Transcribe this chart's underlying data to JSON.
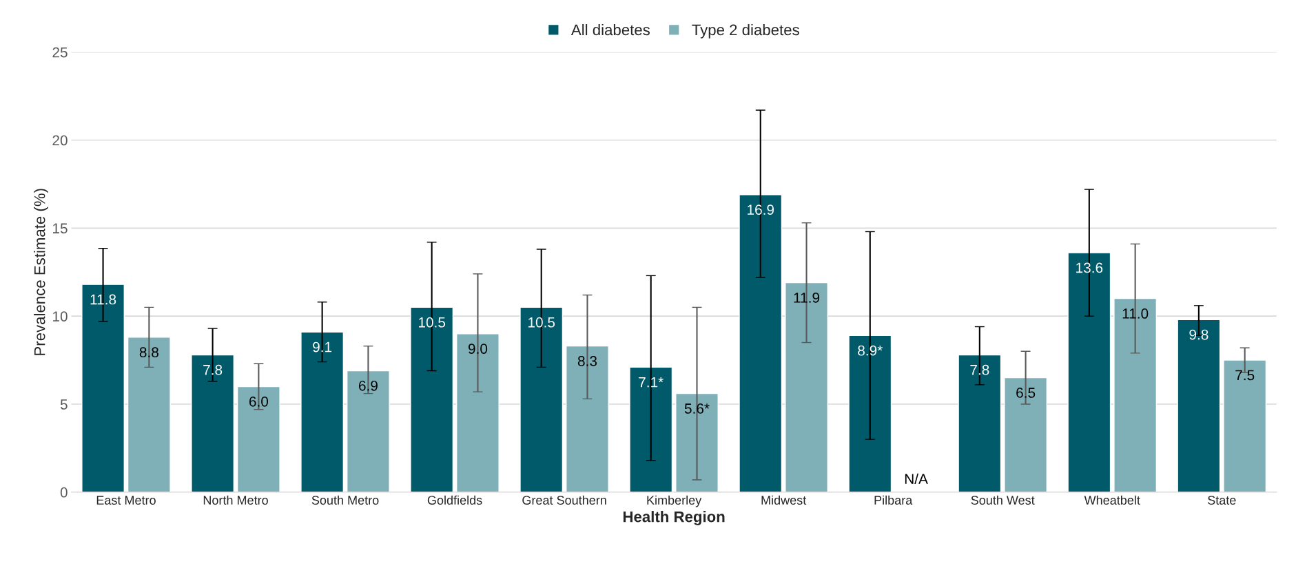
{
  "chart_data": {
    "type": "bar",
    "xlabel": "Health Region",
    "ylabel": "Prevalence Estimate (%)",
    "categories": [
      "East Metro",
      "North Metro",
      "South Metro",
      "Goldfields",
      "Great Southern",
      "Kimberley",
      "Midwest",
      "Pilbara",
      "South West",
      "Wheatbelt",
      "State"
    ],
    "series": [
      {
        "name": "All diabetes",
        "color": "#005a6a",
        "values": [
          11.8,
          7.8,
          9.1,
          10.5,
          10.5,
          7.1,
          16.9,
          8.9,
          7.8,
          13.6,
          9.8
        ],
        "value_labels": [
          "11.8",
          "7.8",
          "9.1",
          "10.5",
          "10.5",
          "7.1*",
          "16.9",
          "8.9*",
          "7.8",
          "13.6",
          "9.8"
        ],
        "errors": [
          [
            9.7,
            13.85
          ],
          [
            6.3,
            9.3
          ],
          [
            7.4,
            10.8
          ],
          [
            6.9,
            14.2
          ],
          [
            7.1,
            13.8
          ],
          [
            1.8,
            12.3
          ],
          [
            12.2,
            21.7
          ],
          [
            3.0,
            14.8
          ],
          [
            6.1,
            9.4
          ],
          [
            10.0,
            17.2
          ],
          [
            8.9,
            10.6
          ]
        ]
      },
      {
        "name": "Type 2 diabetes",
        "color": "#7fafb7",
        "values": [
          8.8,
          6.0,
          6.9,
          9.0,
          8.3,
          5.6,
          11.9,
          null,
          6.5,
          11.0,
          7.5
        ],
        "value_labels": [
          "8.8",
          "6.0",
          "6.9",
          "9.0",
          "8.3",
          "5.6*",
          "11.9",
          "N/A",
          "6.5",
          "11.0",
          "7.5"
        ],
        "errors": [
          [
            7.1,
            10.5
          ],
          [
            4.7,
            7.3
          ],
          [
            5.6,
            8.3
          ],
          [
            5.7,
            12.4
          ],
          [
            5.3,
            11.2
          ],
          [
            0.7,
            10.5
          ],
          [
            8.5,
            15.3
          ],
          null,
          [
            5.0,
            8.0
          ],
          [
            7.9,
            14.1
          ],
          [
            6.8,
            8.2
          ]
        ]
      }
    ],
    "ylim": [
      0,
      25
    ],
    "yticks": [
      0,
      5,
      10,
      15,
      20,
      25
    ],
    "grid": "y",
    "legend": "top"
  }
}
